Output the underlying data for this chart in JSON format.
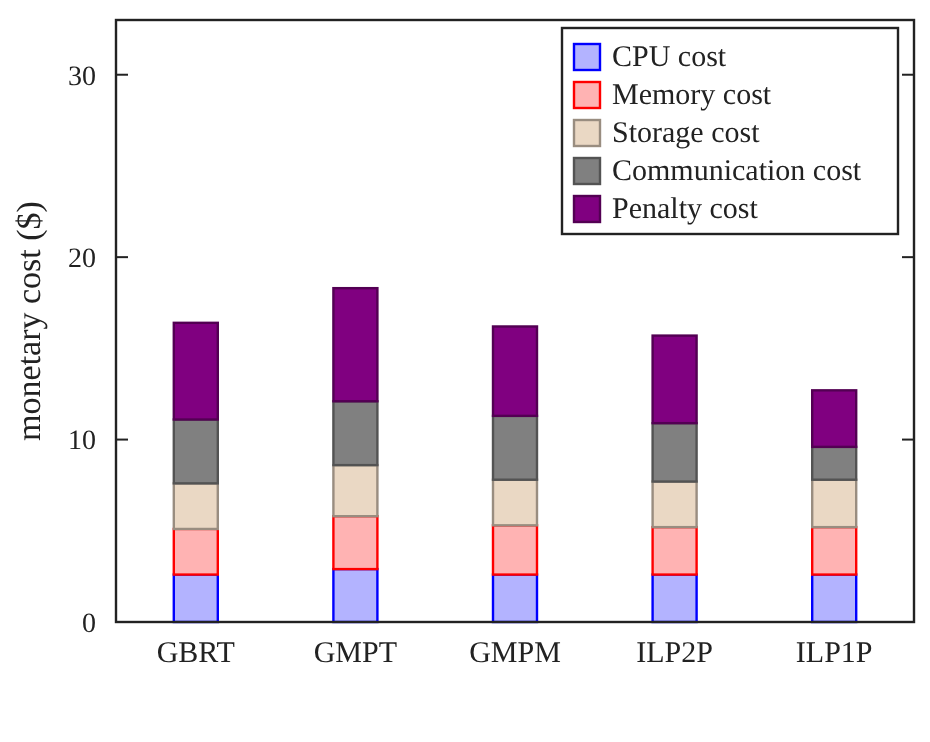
{
  "chart_data": {
    "type": "bar",
    "stacked": true,
    "ylabel": "monetary cost ($)",
    "categories": [
      "GBRT",
      "GMPT",
      "GMPM",
      "ILP2P",
      "ILP1P"
    ],
    "series": [
      {
        "name": "CPU cost",
        "color": "#b3b3ff",
        "values": [
          2.6,
          2.9,
          2.6,
          2.6,
          2.6
        ]
      },
      {
        "name": "Memory cost",
        "color": "#ffb3b3",
        "values": [
          2.5,
          2.9,
          2.7,
          2.6,
          2.6
        ]
      },
      {
        "name": "Storage cost",
        "color": "#ead8c4",
        "values": [
          2.5,
          2.8,
          2.5,
          2.5,
          2.6
        ]
      },
      {
        "name": "Communication cost",
        "color": "#808080",
        "values": [
          3.5,
          3.5,
          3.5,
          3.2,
          1.8
        ]
      },
      {
        "name": "Penalty cost",
        "color": "#800080",
        "values": [
          5.3,
          6.2,
          4.9,
          4.8,
          3.1
        ]
      }
    ],
    "ylim": [
      0,
      33
    ],
    "yticks": [
      0,
      10,
      20,
      30
    ],
    "legend": "top right"
  }
}
